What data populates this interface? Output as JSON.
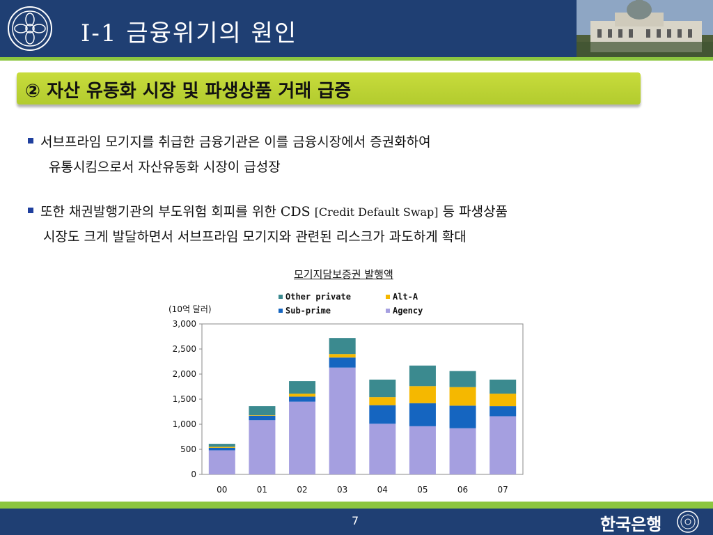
{
  "header": {
    "title": "I-1 금융위기의 원인"
  },
  "section": {
    "heading": "② 자산 유동화 시장 및 파생상품 거래 급증"
  },
  "bullets": [
    {
      "line1": "서브프라임 모기지를 취급한 금융기관은 이를 금융시장에서 증권화하여",
      "line2": "유통시킴으로서 자산유동화 시장이 급성장"
    },
    {
      "line1a": "또한 채권발행기관의 부도위험 회피를 위한 CDS",
      "line1b": "[Credit Default Swap]",
      "line1c": " 등 파생상품",
      "line2": "시장도 크게 발달하면서 서브프라임 모기지와 관련된 리스크가 과도하게 확대"
    }
  ],
  "chart_data": {
    "type": "bar",
    "stacked": true,
    "title": "모기지담보증권  발행액",
    "unit_label": "(10억 달러)",
    "categories": [
      "00",
      "01",
      "02",
      "03",
      "04",
      "05",
      "06",
      "07"
    ],
    "ylim": [
      0,
      3000
    ],
    "yticks": [
      "3,000",
      "2,500",
      "2,000",
      "1,500",
      "1,000",
      "500",
      "0"
    ],
    "ytick_values": [
      3000,
      2500,
      2000,
      1500,
      1000,
      500,
      0
    ],
    "series": [
      {
        "name": "Agency",
        "color": "#a59fe0",
        "values": [
          480,
          1080,
          1450,
          2130,
          1010,
          960,
          920,
          1160
        ]
      },
      {
        "name": "Sub-prime",
        "color": "#1565c0",
        "values": [
          50,
          90,
          100,
          200,
          370,
          460,
          450,
          200
        ]
      },
      {
        "name": "Alt-A",
        "color": "#f5b800",
        "values": [
          20,
          10,
          60,
          70,
          160,
          340,
          370,
          250
        ]
      },
      {
        "name": "Other private",
        "color": "#3b8a8f",
        "values": [
          60,
          180,
          250,
          320,
          350,
          410,
          320,
          280
        ]
      }
    ],
    "legend": [
      "Other private",
      "Alt-A",
      "Sub-prime",
      "Agency"
    ]
  },
  "footer": {
    "page": "7",
    "bank": "한국은행"
  }
}
